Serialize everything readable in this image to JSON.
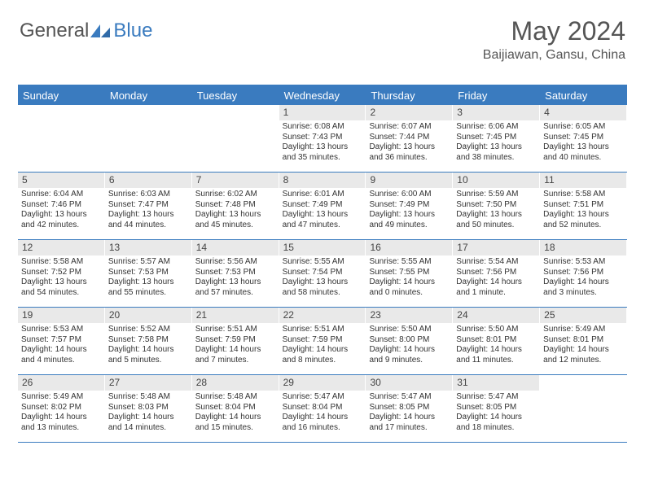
{
  "brand": {
    "part1": "General",
    "part2": "Blue"
  },
  "title": {
    "month": "May 2024",
    "location": "Baijiawan, Gansu, China"
  },
  "colors": {
    "accent": "#3a7bbf",
    "daynum_bg": "#e9e9e9",
    "text": "#333333"
  },
  "dayHeaders": [
    "Sunday",
    "Monday",
    "Tuesday",
    "Wednesday",
    "Thursday",
    "Friday",
    "Saturday"
  ],
  "weeks": [
    [
      {
        "n": "",
        "sunrise": "",
        "sunset": "",
        "daylight": ""
      },
      {
        "n": "",
        "sunrise": "",
        "sunset": "",
        "daylight": ""
      },
      {
        "n": "",
        "sunrise": "",
        "sunset": "",
        "daylight": ""
      },
      {
        "n": "1",
        "sunrise": "Sunrise: 6:08 AM",
        "sunset": "Sunset: 7:43 PM",
        "daylight": "Daylight: 13 hours and 35 minutes."
      },
      {
        "n": "2",
        "sunrise": "Sunrise: 6:07 AM",
        "sunset": "Sunset: 7:44 PM",
        "daylight": "Daylight: 13 hours and 36 minutes."
      },
      {
        "n": "3",
        "sunrise": "Sunrise: 6:06 AM",
        "sunset": "Sunset: 7:45 PM",
        "daylight": "Daylight: 13 hours and 38 minutes."
      },
      {
        "n": "4",
        "sunrise": "Sunrise: 6:05 AM",
        "sunset": "Sunset: 7:45 PM",
        "daylight": "Daylight: 13 hours and 40 minutes."
      }
    ],
    [
      {
        "n": "5",
        "sunrise": "Sunrise: 6:04 AM",
        "sunset": "Sunset: 7:46 PM",
        "daylight": "Daylight: 13 hours and 42 minutes."
      },
      {
        "n": "6",
        "sunrise": "Sunrise: 6:03 AM",
        "sunset": "Sunset: 7:47 PM",
        "daylight": "Daylight: 13 hours and 44 minutes."
      },
      {
        "n": "7",
        "sunrise": "Sunrise: 6:02 AM",
        "sunset": "Sunset: 7:48 PM",
        "daylight": "Daylight: 13 hours and 45 minutes."
      },
      {
        "n": "8",
        "sunrise": "Sunrise: 6:01 AM",
        "sunset": "Sunset: 7:49 PM",
        "daylight": "Daylight: 13 hours and 47 minutes."
      },
      {
        "n": "9",
        "sunrise": "Sunrise: 6:00 AM",
        "sunset": "Sunset: 7:49 PM",
        "daylight": "Daylight: 13 hours and 49 minutes."
      },
      {
        "n": "10",
        "sunrise": "Sunrise: 5:59 AM",
        "sunset": "Sunset: 7:50 PM",
        "daylight": "Daylight: 13 hours and 50 minutes."
      },
      {
        "n": "11",
        "sunrise": "Sunrise: 5:58 AM",
        "sunset": "Sunset: 7:51 PM",
        "daylight": "Daylight: 13 hours and 52 minutes."
      }
    ],
    [
      {
        "n": "12",
        "sunrise": "Sunrise: 5:58 AM",
        "sunset": "Sunset: 7:52 PM",
        "daylight": "Daylight: 13 hours and 54 minutes."
      },
      {
        "n": "13",
        "sunrise": "Sunrise: 5:57 AM",
        "sunset": "Sunset: 7:53 PM",
        "daylight": "Daylight: 13 hours and 55 minutes."
      },
      {
        "n": "14",
        "sunrise": "Sunrise: 5:56 AM",
        "sunset": "Sunset: 7:53 PM",
        "daylight": "Daylight: 13 hours and 57 minutes."
      },
      {
        "n": "15",
        "sunrise": "Sunrise: 5:55 AM",
        "sunset": "Sunset: 7:54 PM",
        "daylight": "Daylight: 13 hours and 58 minutes."
      },
      {
        "n": "16",
        "sunrise": "Sunrise: 5:55 AM",
        "sunset": "Sunset: 7:55 PM",
        "daylight": "Daylight: 14 hours and 0 minutes."
      },
      {
        "n": "17",
        "sunrise": "Sunrise: 5:54 AM",
        "sunset": "Sunset: 7:56 PM",
        "daylight": "Daylight: 14 hours and 1 minute."
      },
      {
        "n": "18",
        "sunrise": "Sunrise: 5:53 AM",
        "sunset": "Sunset: 7:56 PM",
        "daylight": "Daylight: 14 hours and 3 minutes."
      }
    ],
    [
      {
        "n": "19",
        "sunrise": "Sunrise: 5:53 AM",
        "sunset": "Sunset: 7:57 PM",
        "daylight": "Daylight: 14 hours and 4 minutes."
      },
      {
        "n": "20",
        "sunrise": "Sunrise: 5:52 AM",
        "sunset": "Sunset: 7:58 PM",
        "daylight": "Daylight: 14 hours and 5 minutes."
      },
      {
        "n": "21",
        "sunrise": "Sunrise: 5:51 AM",
        "sunset": "Sunset: 7:59 PM",
        "daylight": "Daylight: 14 hours and 7 minutes."
      },
      {
        "n": "22",
        "sunrise": "Sunrise: 5:51 AM",
        "sunset": "Sunset: 7:59 PM",
        "daylight": "Daylight: 14 hours and 8 minutes."
      },
      {
        "n": "23",
        "sunrise": "Sunrise: 5:50 AM",
        "sunset": "Sunset: 8:00 PM",
        "daylight": "Daylight: 14 hours and 9 minutes."
      },
      {
        "n": "24",
        "sunrise": "Sunrise: 5:50 AM",
        "sunset": "Sunset: 8:01 PM",
        "daylight": "Daylight: 14 hours and 11 minutes."
      },
      {
        "n": "25",
        "sunrise": "Sunrise: 5:49 AM",
        "sunset": "Sunset: 8:01 PM",
        "daylight": "Daylight: 14 hours and 12 minutes."
      }
    ],
    [
      {
        "n": "26",
        "sunrise": "Sunrise: 5:49 AM",
        "sunset": "Sunset: 8:02 PM",
        "daylight": "Daylight: 14 hours and 13 minutes."
      },
      {
        "n": "27",
        "sunrise": "Sunrise: 5:48 AM",
        "sunset": "Sunset: 8:03 PM",
        "daylight": "Daylight: 14 hours and 14 minutes."
      },
      {
        "n": "28",
        "sunrise": "Sunrise: 5:48 AM",
        "sunset": "Sunset: 8:04 PM",
        "daylight": "Daylight: 14 hours and 15 minutes."
      },
      {
        "n": "29",
        "sunrise": "Sunrise: 5:47 AM",
        "sunset": "Sunset: 8:04 PM",
        "daylight": "Daylight: 14 hours and 16 minutes."
      },
      {
        "n": "30",
        "sunrise": "Sunrise: 5:47 AM",
        "sunset": "Sunset: 8:05 PM",
        "daylight": "Daylight: 14 hours and 17 minutes."
      },
      {
        "n": "31",
        "sunrise": "Sunrise: 5:47 AM",
        "sunset": "Sunset: 8:05 PM",
        "daylight": "Daylight: 14 hours and 18 minutes."
      },
      {
        "n": "",
        "sunrise": "",
        "sunset": "",
        "daylight": ""
      }
    ]
  ]
}
